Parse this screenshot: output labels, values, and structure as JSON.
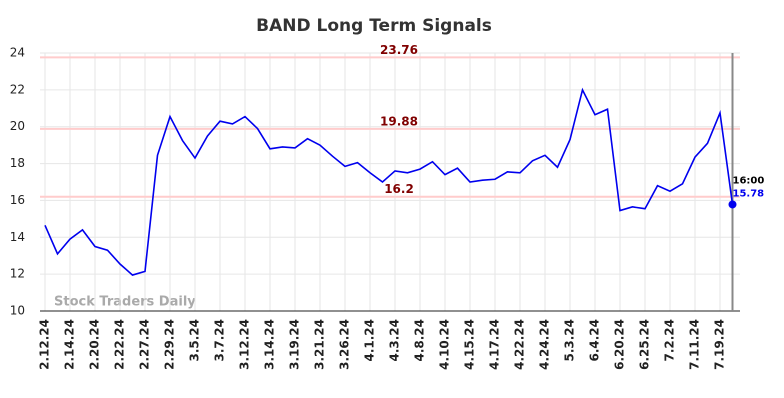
{
  "chart_data": {
    "type": "line",
    "title": "BAND Long Term Signals",
    "categories": [
      "2.12.24",
      null,
      "2.14.24",
      null,
      "2.20.24",
      null,
      "2.22.24",
      null,
      "2.27.24",
      null,
      "2.29.24",
      null,
      "3.5.24",
      null,
      "3.7.24",
      null,
      "3.12.24",
      null,
      "3.14.24",
      null,
      "3.19.24",
      null,
      "3.21.24",
      null,
      "3.26.24",
      null,
      "4.1.24",
      null,
      "4.3.24",
      null,
      "4.8.24",
      null,
      "4.10.24",
      null,
      "4.15.24",
      null,
      "4.17.24",
      null,
      "4.22.24",
      null,
      "4.24.24",
      null,
      "5.3.24",
      null,
      "6.4.24",
      null,
      "6.20.24",
      null,
      "6.25.24",
      null,
      "7.2.24",
      null,
      "7.11.24",
      null,
      "7.19.24",
      null
    ],
    "values": [
      14.65,
      13.1,
      13.9,
      14.4,
      13.5,
      13.3,
      12.55,
      11.95,
      12.15,
      18.45,
      20.55,
      19.25,
      18.3,
      19.5,
      20.3,
      20.15,
      20.55,
      19.9,
      18.8,
      18.9,
      18.85,
      19.35,
      19.0,
      18.4,
      17.85,
      18.05,
      17.5,
      17.0,
      17.6,
      17.5,
      17.7,
      18.1,
      17.4,
      17.75,
      17.0,
      17.1,
      17.15,
      17.55,
      17.5,
      18.15,
      18.45,
      17.8,
      19.3,
      22.0,
      20.65,
      20.95,
      15.45,
      15.65,
      15.55,
      16.8,
      16.5,
      16.9,
      18.35,
      19.1,
      20.75,
      15.78
    ],
    "color": "#0000ee",
    "ylim": [
      10,
      24
    ],
    "yticks": [
      10,
      12,
      14,
      16,
      18,
      20,
      22,
      24
    ],
    "grid": true,
    "hlines": [
      23.76,
      19.88,
      16.2
    ],
    "hline_color": "#ffcccc",
    "hline_label_color": "#800000",
    "last_time": "16:00",
    "watermark": "Stock Traders Daily"
  }
}
